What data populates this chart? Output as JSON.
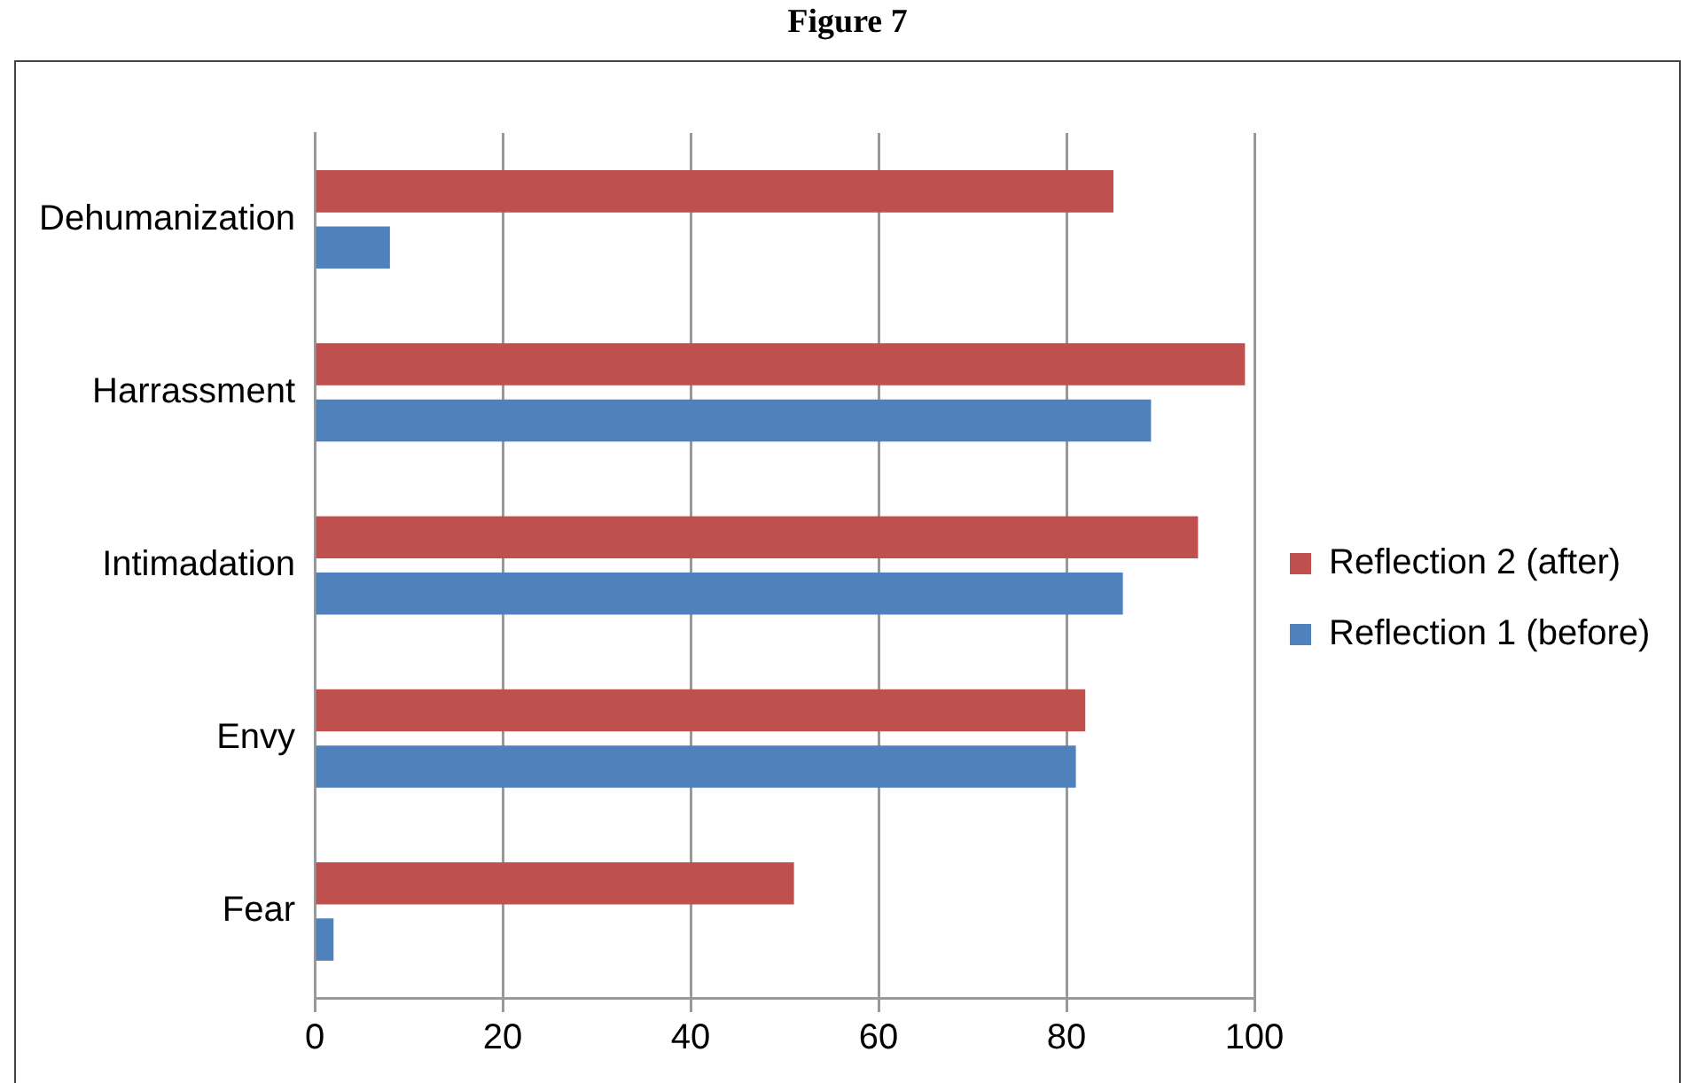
{
  "chart_data": {
    "type": "bar",
    "orientation": "horizontal",
    "title": "Figure 7",
    "categories": [
      "Dehumanization",
      "Harrassment",
      "Intimadation",
      "Envy",
      "Fear"
    ],
    "series": [
      {
        "name": "Reflection 2 (after)",
        "color": "#c0504d",
        "values": [
          85,
          99,
          94,
          82,
          51
        ]
      },
      {
        "name": "Reflection 1 (before)",
        "color": "#4f81bd",
        "values": [
          8,
          89,
          86,
          81,
          2
        ]
      }
    ],
    "xlim": [
      0,
      100
    ],
    "xticks": [
      0,
      20,
      40,
      60,
      80,
      100
    ],
    "grid": "x",
    "legend": "right"
  }
}
